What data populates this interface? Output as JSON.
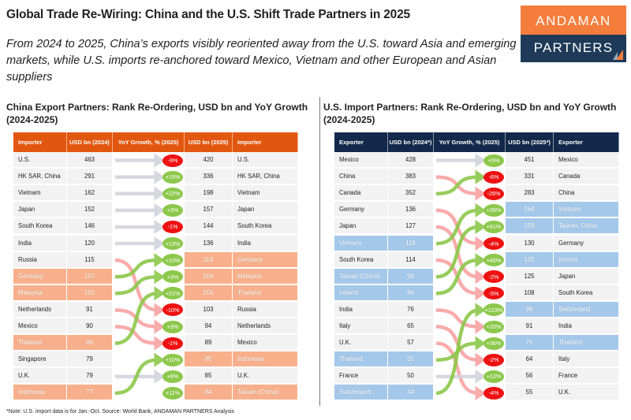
{
  "title": "Global Trade Re-Wiring: China and the U.S. Shift Trade Partners in 2025",
  "subtitle": "From 2024 to 2025, China’s exports visibly reoriented away from the U.S. toward Asia and emerging markets, while U.S. imports re-anchored toward Mexico, Vietnam and other European and Asian suppliers",
  "logo": {
    "line1": "ANDAMAN",
    "line2": "PARTNERS"
  },
  "footnote": "*Note: U.S. import data is for Jan.-Oct. Source: World Bank, ANDAMAN PARTNERS Analysis",
  "colors": {
    "china_header": "#e2570f",
    "china_highlight": "#f7b08b",
    "us_header": "#13294b",
    "us_highlight": "#a4c8ea",
    "up": "#8cc84b",
    "down": "#f9a3a3",
    "flat": "#d3d3dd",
    "pill_pos": "#8cc84b",
    "pill_neg": "#ee1111"
  },
  "chart_data": [
    {
      "type": "table",
      "title": "China Export Partners: Rank Re-Ordering, USD bn and YoY Growth (2024-2025)",
      "headers": [
        "Importer",
        "USD bn (2024)",
        "YoY Growth, % (2025)",
        "USD bn (2025)",
        "Importer"
      ],
      "rows_2024": [
        {
          "name": "U.S.",
          "value": 463,
          "highlight": false
        },
        {
          "name": "HK SAR, China",
          "value": 291,
          "highlight": false
        },
        {
          "name": "Vietnam",
          "value": 162,
          "highlight": false
        },
        {
          "name": "Japan",
          "value": 152,
          "highlight": false
        },
        {
          "name": "South Korea",
          "value": 146,
          "highlight": false
        },
        {
          "name": "India",
          "value": 120,
          "highlight": false
        },
        {
          "name": "Russia",
          "value": 115,
          "highlight": false
        },
        {
          "name": "Germany",
          "value": 107,
          "highlight": true
        },
        {
          "name": "Malaysia",
          "value": 101,
          "highlight": true
        },
        {
          "name": "Netherlands",
          "value": 91,
          "highlight": false
        },
        {
          "name": "Mexico",
          "value": 90,
          "highlight": false
        },
        {
          "name": "Thailand",
          "value": 86,
          "highlight": true
        },
        {
          "name": "Singapore",
          "value": 79,
          "highlight": false
        },
        {
          "name": "U.K.",
          "value": 79,
          "highlight": false
        },
        {
          "name": "Indonesia",
          "value": 77,
          "highlight": true
        }
      ],
      "rows_2025": [
        {
          "name": "U.S.",
          "value": 420,
          "growth": "-9%",
          "highlight": false
        },
        {
          "name": "HK SAR, China",
          "value": 336,
          "growth": "+15%",
          "highlight": false
        },
        {
          "name": "Vietnam",
          "value": 198,
          "growth": "+22%",
          "highlight": false
        },
        {
          "name": "Japan",
          "value": 157,
          "growth": "+3%",
          "highlight": false
        },
        {
          "name": "South Korea",
          "value": 144,
          "growth": "-1%",
          "highlight": false
        },
        {
          "name": "India",
          "value": 136,
          "growth": "+13%",
          "highlight": false
        },
        {
          "name": "Germany",
          "value": 118,
          "growth": "+10%",
          "highlight": true
        },
        {
          "name": "Malaysia",
          "value": 104,
          "growth": "+3%",
          "highlight": true
        },
        {
          "name": "Thailand",
          "value": 104,
          "growth": "+21%",
          "highlight": true
        },
        {
          "name": "Russia",
          "value": 103,
          "growth": "-10%",
          "highlight": false
        },
        {
          "name": "Netherlands",
          "value": 94,
          "growth": "+3%",
          "highlight": false
        },
        {
          "name": "Mexico",
          "value": 89,
          "growth": "-1%",
          "highlight": false
        },
        {
          "name": "Indonesia",
          "value": 85,
          "growth": "+10%",
          "highlight": true
        },
        {
          "name": "U.K.",
          "value": 85,
          "growth": "+8%",
          "highlight": false
        },
        {
          "name": "Taiwan (China)",
          "value": 84,
          "growth": "+11%",
          "highlight": true
        }
      ],
      "moves": [
        [
          0,
          0
        ],
        [
          1,
          1
        ],
        [
          2,
          2
        ],
        [
          3,
          3
        ],
        [
          4,
          4
        ],
        [
          5,
          5
        ],
        [
          6,
          9
        ],
        [
          7,
          6
        ],
        [
          8,
          7
        ],
        [
          9,
          10
        ],
        [
          10,
          11
        ],
        [
          11,
          8
        ],
        [
          13,
          13
        ],
        [
          14,
          12
        ]
      ]
    },
    {
      "type": "table",
      "title": "U.S. Import Partners: Rank Re-Ordering, USD bn and YoY Growth (2024-2025)",
      "headers": [
        "Exporter",
        "USD bn (2024*)",
        "YoY Growth, % (2025)",
        "USD bn (2025*)",
        "Exporter"
      ],
      "rows_2024": [
        {
          "name": "Mexico",
          "value": 428,
          "highlight": false
        },
        {
          "name": "China",
          "value": 383,
          "highlight": false
        },
        {
          "name": "Canada",
          "value": 352,
          "highlight": false
        },
        {
          "name": "Germany",
          "value": 136,
          "highlight": false
        },
        {
          "name": "Japan",
          "value": 127,
          "highlight": false
        },
        {
          "name": "Vietnam",
          "value": 118,
          "highlight": true
        },
        {
          "name": "South Korea",
          "value": 114,
          "highlight": false
        },
        {
          "name": "Taiwan (China)",
          "value": 99,
          "highlight": true
        },
        {
          "name": "Ireland",
          "value": 86,
          "highlight": true
        },
        {
          "name": "India",
          "value": 76,
          "highlight": false
        },
        {
          "name": "Italy",
          "value": 65,
          "highlight": false
        },
        {
          "name": "U.K.",
          "value": 57,
          "highlight": false
        },
        {
          "name": "Thailand",
          "value": 55,
          "highlight": true
        },
        {
          "name": "France",
          "value": 50,
          "highlight": false
        },
        {
          "name": "Switzerland",
          "value": 44,
          "highlight": true
        }
      ],
      "rows_2025": [
        {
          "name": "Mexico",
          "value": 451,
          "growth": "+5%",
          "highlight": false
        },
        {
          "name": "Canada",
          "value": 331,
          "growth": "-6%",
          "highlight": false
        },
        {
          "name": "China",
          "value": 283,
          "growth": "-26%",
          "highlight": false
        },
        {
          "name": "Vietnam",
          "value": 164,
          "growth": "+39%",
          "highlight": true
        },
        {
          "name": "Taiwan, China",
          "value": 159,
          "growth": "+61%",
          "highlight": true
        },
        {
          "name": "Germany",
          "value": 130,
          "growth": "-4%",
          "highlight": false
        },
        {
          "name": "Ireland",
          "value": 125,
          "growth": "+45%",
          "highlight": true
        },
        {
          "name": "Japan",
          "value": 125,
          "growth": "-2%",
          "highlight": false
        },
        {
          "name": "South Korea",
          "value": 108,
          "growth": "-5%",
          "highlight": false
        },
        {
          "name": "Switzerland",
          "value": 98,
          "growth": "+123%",
          "highlight": true
        },
        {
          "name": "India",
          "value": 91,
          "growth": "+20%",
          "highlight": false
        },
        {
          "name": "Thailand",
          "value": 75,
          "growth": "+36%",
          "highlight": true
        },
        {
          "name": "Italy",
          "value": 64,
          "growth": "-2%",
          "highlight": false
        },
        {
          "name": "France",
          "value": 56,
          "growth": "+12%",
          "highlight": false
        },
        {
          "name": "U.K.",
          "value": 55,
          "growth": "-4%",
          "highlight": false
        }
      ],
      "moves": [
        [
          0,
          0
        ],
        [
          1,
          2
        ],
        [
          2,
          1
        ],
        [
          3,
          5
        ],
        [
          4,
          7
        ],
        [
          5,
          3
        ],
        [
          6,
          8
        ],
        [
          7,
          4
        ],
        [
          8,
          6
        ],
        [
          9,
          10
        ],
        [
          10,
          12
        ],
        [
          11,
          14
        ],
        [
          12,
          11
        ],
        [
          13,
          13
        ],
        [
          14,
          9
        ]
      ]
    }
  ]
}
